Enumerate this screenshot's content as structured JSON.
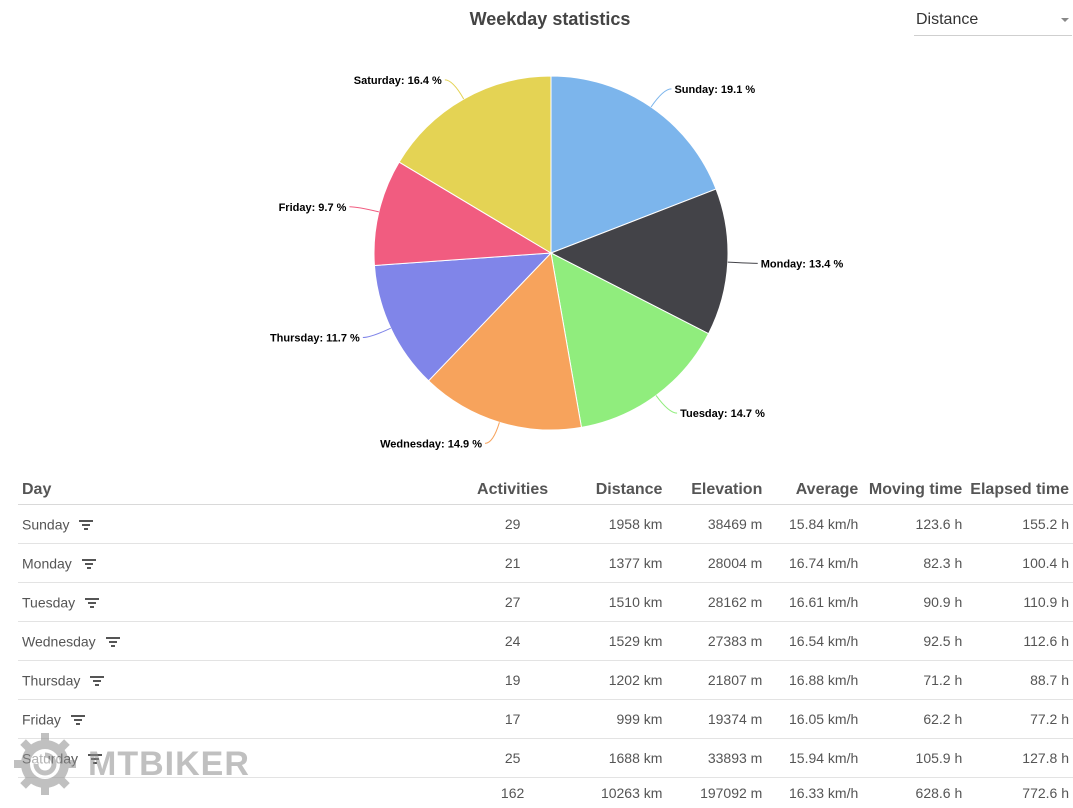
{
  "title": "Weekday statistics",
  "metric_select": {
    "value": "Distance"
  },
  "chart_data": {
    "type": "pie",
    "title": "Weekday statistics",
    "slices": [
      {
        "label": "Sunday",
        "value": 19.1,
        "text": "Sunday: 19.1 %",
        "color": "#7cb5ec"
      },
      {
        "label": "Monday",
        "value": 13.4,
        "text": "Monday: 13.4 %",
        "color": "#434348"
      },
      {
        "label": "Tuesday",
        "value": 14.7,
        "text": "Tuesday: 14.7 %",
        "color": "#90ed7d"
      },
      {
        "label": "Wednesday",
        "value": 14.9,
        "text": "Wednesday: 14.9 %",
        "color": "#f7a35c"
      },
      {
        "label": "Thursday",
        "value": 11.7,
        "text": "Thursday: 11.7 %",
        "color": "#8085e9"
      },
      {
        "label": "Friday",
        "value": 9.7,
        "text": "Friday: 9.7 %",
        "color": "#f15c80"
      },
      {
        "label": "Saturday",
        "value": 16.4,
        "text": "Saturday: 16.4 %",
        "color": "#e4d354"
      }
    ]
  },
  "table": {
    "headers": {
      "day": "Day",
      "activities": "Activities",
      "distance": "Distance",
      "elevation": "Elevation",
      "average": "Average",
      "moving": "Moving time",
      "elapsed": "Elapsed time"
    },
    "rows": [
      {
        "day": "Sunday",
        "activities": "29",
        "distance": "1958 km",
        "elevation": "38469 m",
        "average": "15.84 km/h",
        "moving": "123.6 h",
        "elapsed": "155.2 h"
      },
      {
        "day": "Monday",
        "activities": "21",
        "distance": "1377 km",
        "elevation": "28004 m",
        "average": "16.74 km/h",
        "moving": "82.3 h",
        "elapsed": "100.4 h"
      },
      {
        "day": "Tuesday",
        "activities": "27",
        "distance": "1510 km",
        "elevation": "28162 m",
        "average": "16.61 km/h",
        "moving": "90.9 h",
        "elapsed": "110.9 h"
      },
      {
        "day": "Wednesday",
        "activities": "24",
        "distance": "1529 km",
        "elevation": "27383 m",
        "average": "16.54 km/h",
        "moving": "92.5 h",
        "elapsed": "112.6 h"
      },
      {
        "day": "Thursday",
        "activities": "19",
        "distance": "1202 km",
        "elevation": "21807 m",
        "average": "16.88 km/h",
        "moving": "71.2 h",
        "elapsed": "88.7 h"
      },
      {
        "day": "Friday",
        "activities": "17",
        "distance": "999 km",
        "elevation": "19374 m",
        "average": "16.05 km/h",
        "moving": "62.2 h",
        "elapsed": "77.2 h"
      },
      {
        "day": "Saturday",
        "activities": "25",
        "distance": "1688 km",
        "elevation": "33893 m",
        "average": "15.94 km/h",
        "moving": "105.9 h",
        "elapsed": "127.8 h"
      }
    ],
    "totals": {
      "activities": "162",
      "distance": "10263 km",
      "elevation": "197092 m",
      "average": "16.33 km/h",
      "moving": "628.6 h",
      "elapsed": "772.6 h"
    }
  },
  "watermark": {
    "text": "MTBIKER"
  }
}
